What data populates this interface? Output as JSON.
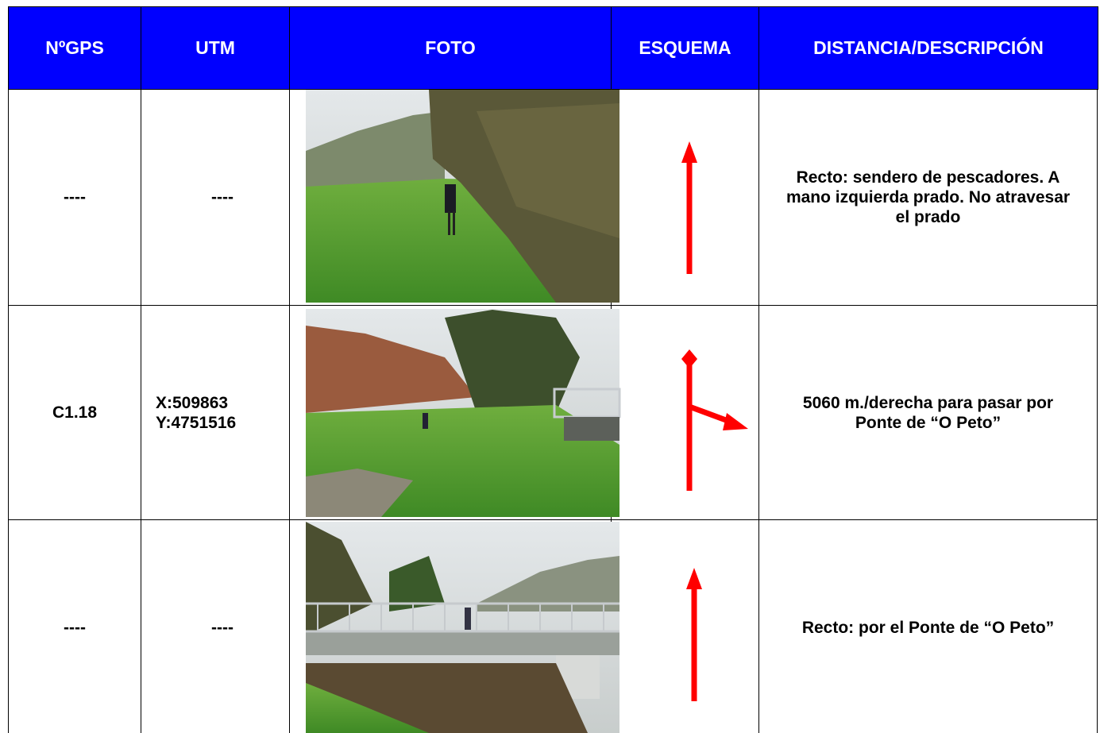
{
  "header": [
    "NºGPS",
    "UTM",
    "FOTO",
    "ESQUEMA",
    "DISTANCIA/DESCRIPCIÓN"
  ],
  "rows": [
    {
      "gps": "----",
      "utm": [
        "----"
      ],
      "description": "Recto: sendero de pescadores. A mano izquierda prado. No atravesar el prado"
    },
    {
      "gps": "C1.18",
      "utm": [
        "X:509863",
        "Y:4751516"
      ],
      "description": "5060 m./derecha para pasar por Ponte de “O Peto”"
    },
    {
      "gps": "----",
      "utm": [
        "----"
      ],
      "description": "Recto: por el Ponte de “O Peto”"
    }
  ]
}
